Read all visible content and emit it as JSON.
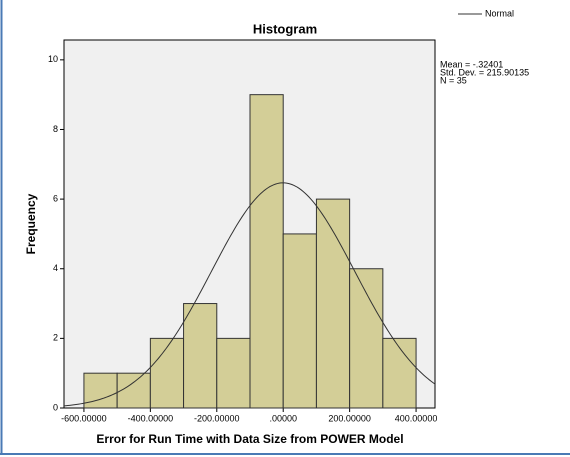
{
  "chart_data": {
    "type": "histogram",
    "title": "Histogram",
    "xlabel": "Error for Run Time with Data Size from POWER Model",
    "ylabel": "Frequency",
    "bins": [
      -600,
      -500,
      -400,
      -300,
      -200,
      -100,
      0,
      100,
      200,
      300,
      400
    ],
    "counts": [
      1,
      1,
      2,
      3,
      2,
      9,
      5,
      6,
      4,
      2
    ],
    "color": "#d3ce97",
    "xlim": [
      -660,
      457
    ],
    "ylim": [
      0,
      10.57
    ],
    "xticks": [
      {
        "value": -600,
        "label": "-600.00000"
      },
      {
        "value": -400,
        "label": "-400.00000"
      },
      {
        "value": -200,
        "label": "-200.00000"
      },
      {
        "value": 0,
        "label": ".00000"
      },
      {
        "value": 200,
        "label": "200.00000"
      },
      {
        "value": 400,
        "label": "400.00000"
      }
    ],
    "yticks": [
      0,
      2,
      4,
      6,
      8,
      10
    ],
    "legend": "Normal",
    "stats": {
      "mean": {
        "value": -0.32401,
        "label": "Mean = -.32401"
      },
      "std_dev": {
        "value": 215.90135,
        "label": "Std. Dev. = 215.90135"
      },
      "n": {
        "value": 35,
        "label": "N = 35"
      }
    }
  }
}
